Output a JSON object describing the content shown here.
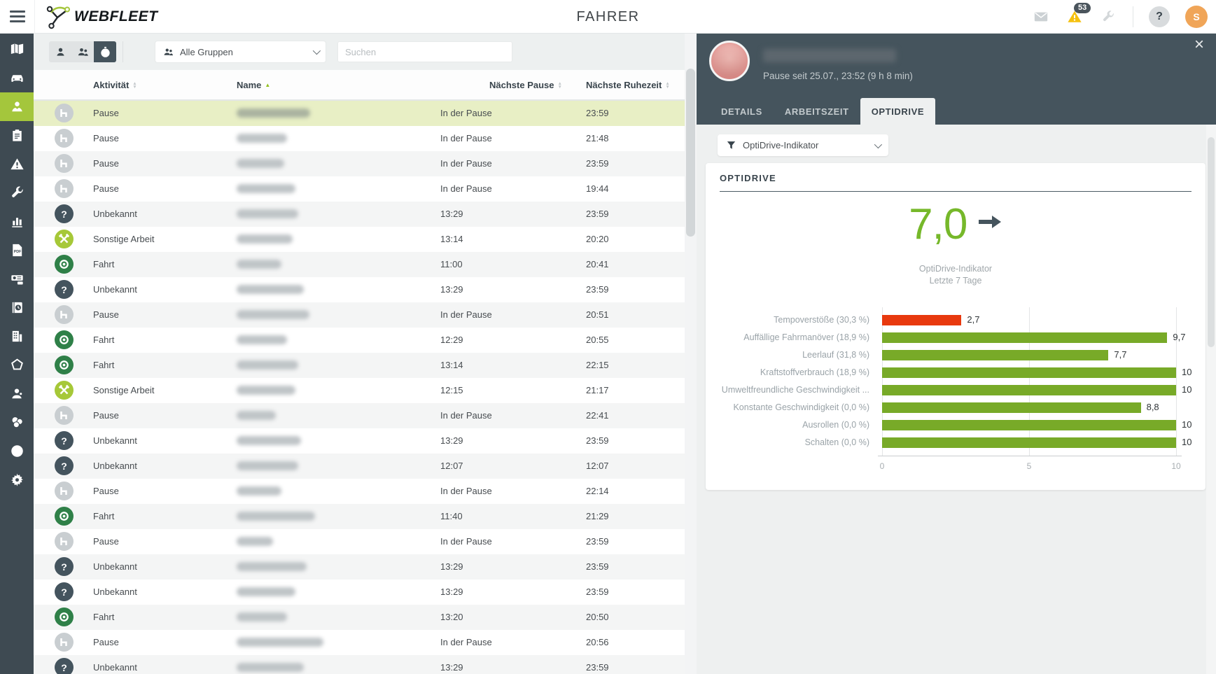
{
  "header": {
    "logo_text": "WEBFLEET",
    "title": "FAHRER",
    "alerts_count": "53",
    "help_label": "?",
    "avatar_initial": "S",
    "icons": [
      "menu-icon",
      "messages-icon",
      "alerts-icon",
      "service-wrench-icon"
    ]
  },
  "sidebar": {
    "items": [
      {
        "name": "map",
        "icon": "map",
        "active": false
      },
      {
        "name": "vehicles",
        "icon": "car",
        "active": false
      },
      {
        "name": "drivers",
        "icon": "driver",
        "active": true
      },
      {
        "name": "orders",
        "icon": "orders",
        "active": false
      },
      {
        "name": "alerts",
        "icon": "warning",
        "active": false
      },
      {
        "name": "maintenance",
        "icon": "wrench",
        "active": false
      },
      {
        "name": "reports",
        "icon": "chart",
        "active": false
      },
      {
        "name": "pdf-reports",
        "icon": "pdf",
        "active": false
      },
      {
        "name": "tachograph",
        "icon": "tacho",
        "active": false
      },
      {
        "name": "archive",
        "icon": "archive",
        "active": false
      },
      {
        "name": "company",
        "icon": "building",
        "active": false
      },
      {
        "name": "areas",
        "icon": "areas",
        "active": false
      },
      {
        "name": "personnel",
        "icon": "agent",
        "active": false
      },
      {
        "name": "costs",
        "icon": "coins",
        "active": false
      },
      {
        "name": "compliance",
        "icon": "check",
        "active": false
      },
      {
        "name": "settings",
        "icon": "gear",
        "active": false
      }
    ]
  },
  "toolbar": {
    "view_toggles": [
      {
        "name": "drivers-view",
        "icon": "person",
        "active": false
      },
      {
        "name": "driver-groups-view",
        "icon": "persons",
        "active": false
      },
      {
        "name": "working-times-view",
        "icon": "stopwatch",
        "active": true
      }
    ],
    "group_filter": "Alle Gruppen",
    "search_placeholder": "Suchen"
  },
  "table": {
    "columns": [
      {
        "label": "Aktivität",
        "sort": "none"
      },
      {
        "label": "Name",
        "sort": "asc"
      },
      {
        "label": "Nächste Pause",
        "sort": "none"
      },
      {
        "label": "Nächste Ruhezeit",
        "sort": "none"
      }
    ],
    "rows": [
      {
        "activity": "Pause",
        "icon": "pause",
        "next_pause": "In der Pause",
        "next_rest": "23:59",
        "selected": true,
        "name_w": 105
      },
      {
        "activity": "Pause",
        "icon": "pause",
        "next_pause": "In der Pause",
        "next_rest": "21:48",
        "selected": false,
        "name_w": 72
      },
      {
        "activity": "Pause",
        "icon": "pause",
        "next_pause": "In der Pause",
        "next_rest": "23:59",
        "selected": false,
        "name_w": 68
      },
      {
        "activity": "Pause",
        "icon": "pause",
        "next_pause": "In der Pause",
        "next_rest": "19:44",
        "selected": false,
        "name_w": 84
      },
      {
        "activity": "Unbekannt",
        "icon": "unknown",
        "next_pause": "13:29",
        "next_rest": "23:59",
        "selected": false,
        "name_w": 88
      },
      {
        "activity": "Sonstige Arbeit",
        "icon": "work",
        "next_pause": "13:14",
        "next_rest": "20:20",
        "selected": false,
        "name_w": 80
      },
      {
        "activity": "Fahrt",
        "icon": "drive",
        "next_pause": "11:00",
        "next_rest": "20:41",
        "selected": false,
        "name_w": 64
      },
      {
        "activity": "Unbekannt",
        "icon": "unknown",
        "next_pause": "13:29",
        "next_rest": "23:59",
        "selected": false,
        "name_w": 96
      },
      {
        "activity": "Pause",
        "icon": "pause",
        "next_pause": "In der Pause",
        "next_rest": "20:51",
        "selected": false,
        "name_w": 104
      },
      {
        "activity": "Fahrt",
        "icon": "drive",
        "next_pause": "12:29",
        "next_rest": "20:55",
        "selected": false,
        "name_w": 72
      },
      {
        "activity": "Fahrt",
        "icon": "drive",
        "next_pause": "13:14",
        "next_rest": "22:15",
        "selected": false,
        "name_w": 88
      },
      {
        "activity": "Sonstige Arbeit",
        "icon": "work",
        "next_pause": "12:15",
        "next_rest": "21:17",
        "selected": false,
        "name_w": 84
      },
      {
        "activity": "Pause",
        "icon": "pause",
        "next_pause": "In der Pause",
        "next_rest": "22:41",
        "selected": false,
        "name_w": 56
      },
      {
        "activity": "Unbekannt",
        "icon": "unknown",
        "next_pause": "13:29",
        "next_rest": "23:59",
        "selected": false,
        "name_w": 92
      },
      {
        "activity": "Unbekannt",
        "icon": "unknown",
        "next_pause": "12:07",
        "next_rest": "12:07",
        "selected": false,
        "name_w": 88
      },
      {
        "activity": "Pause",
        "icon": "pause",
        "next_pause": "In der Pause",
        "next_rest": "22:14",
        "selected": false,
        "name_w": 64
      },
      {
        "activity": "Fahrt",
        "icon": "drive",
        "next_pause": "11:40",
        "next_rest": "21:29",
        "selected": false,
        "name_w": 112
      },
      {
        "activity": "Pause",
        "icon": "pause",
        "next_pause": "In der Pause",
        "next_rest": "23:59",
        "selected": false,
        "name_w": 52
      },
      {
        "activity": "Unbekannt",
        "icon": "unknown",
        "next_pause": "13:29",
        "next_rest": "23:59",
        "selected": false,
        "name_w": 100
      },
      {
        "activity": "Unbekannt",
        "icon": "unknown",
        "next_pause": "13:29",
        "next_rest": "23:59",
        "selected": false,
        "name_w": 84
      },
      {
        "activity": "Fahrt",
        "icon": "drive",
        "next_pause": "13:20",
        "next_rest": "20:50",
        "selected": false,
        "name_w": 72
      },
      {
        "activity": "Pause",
        "icon": "pause",
        "next_pause": "In der Pause",
        "next_rest": "20:56",
        "selected": false,
        "name_w": 124
      },
      {
        "activity": "Unbekannt",
        "icon": "unknown",
        "next_pause": "13:29",
        "next_rest": "23:59",
        "selected": false,
        "name_w": 96
      }
    ]
  },
  "detail": {
    "status_line": "Pause seit 25.07., 23:52 (9 h 8 min)",
    "tabs": [
      "DETAILS",
      "ARBEITSZEIT",
      "OPTIDRIVE"
    ],
    "active_tab": "OPTIDRIVE",
    "filter_value": "OptiDrive-Indikator",
    "section_title": "OPTIDRIVE",
    "close_label": "×"
  },
  "chart_data": {
    "type": "bar",
    "orientation": "horizontal",
    "title": "OPTIDRIVE",
    "score": 7.0,
    "score_label": "7,0",
    "trend": "stable",
    "score_sub1": "OptiDrive-Indikator",
    "score_sub2": "Letzte 7 Tage",
    "categories": [
      "Tempoverstöße (30,3 %)",
      "Auffällige Fahrmanöver (18,9 %)",
      "Leerlauf (31,8 %)",
      "Kraftstoffverbrauch (18,9 %)",
      "Umweltfreundliche Geschwindigkeit ...",
      "Konstante Geschwindigkeit (0,0 %)",
      "Ausrollen (0,0 %)",
      "Schalten (0,0 %)"
    ],
    "values": [
      2.7,
      9.7,
      7.7,
      10,
      10,
      8.8,
      10,
      10
    ],
    "value_labels": [
      "2,7",
      "9,7",
      "7,7",
      "10",
      "10",
      "8,8",
      "10",
      "10"
    ],
    "bar_colors": [
      "#e8390e",
      "#78aa28",
      "#78aa28",
      "#78aa28",
      "#78aa28",
      "#78aa28",
      "#78aa28",
      "#78aa28"
    ],
    "xlim": [
      0,
      10
    ],
    "xtick_labels": [
      "0",
      "5",
      "10"
    ],
    "grid": true,
    "legend": "none"
  },
  "colors": {
    "accent_green": "#a4c63c",
    "score_green": "#76b82a",
    "bar_green": "#78aa28",
    "bar_red": "#e8390e",
    "panel_header": "#45545d",
    "sidebar": "#3e4a52",
    "selected_row": "#e8efc5",
    "warning_yellow": "#f5c10e"
  }
}
